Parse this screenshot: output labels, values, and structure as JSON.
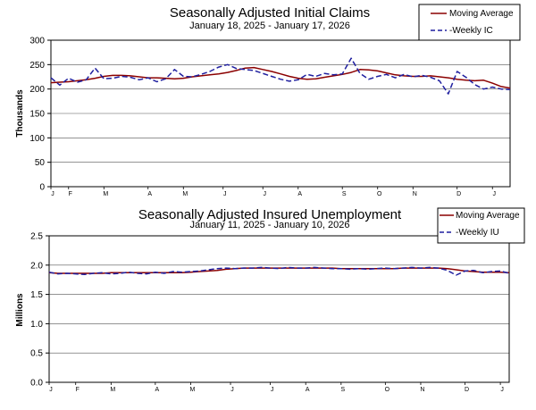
{
  "chart_data": [
    {
      "type": "line",
      "title": "Seasonally Adjusted Initial Claims",
      "subtitle": "January 18, 2025 - January 17, 2026",
      "ylabel": "Thousands",
      "xlabel": "",
      "ylim": [
        0,
        300
      ],
      "yticks": [
        "0",
        "50",
        "100",
        "150",
        "200",
        "250",
        "300"
      ],
      "month_ticks": [
        {
          "label": "J",
          "week": 0
        },
        {
          "label": "F",
          "week": 2
        },
        {
          "label": "M",
          "week": 6
        },
        {
          "label": "A",
          "week": 11
        },
        {
          "label": "M",
          "week": 15
        },
        {
          "label": "J",
          "week": 19.5
        },
        {
          "label": "J",
          "week": 24
        },
        {
          "label": "A",
          "week": 28
        },
        {
          "label": "S",
          "week": 33
        },
        {
          "label": "O",
          "week": 37
        },
        {
          "label": "N",
          "week": 41
        },
        {
          "label": "D",
          "week": 46
        },
        {
          "label": "J",
          "week": 50
        }
      ],
      "legend": [
        "Moving Average",
        "-Weekly IC"
      ],
      "legend_position": "top-right",
      "series": [
        {
          "name": "Moving Average",
          "color": "#8B0000",
          "dash": "solid",
          "values": [
            213,
            214,
            215,
            217,
            219,
            222,
            226,
            228,
            228,
            227,
            225,
            223,
            223,
            222,
            221,
            222,
            225,
            227,
            229,
            231,
            234,
            238,
            243,
            244,
            240,
            236,
            231,
            226,
            222,
            220,
            221,
            224,
            227,
            230,
            234,
            240,
            239,
            237,
            233,
            229,
            227,
            226,
            226,
            227,
            225,
            223,
            220,
            218,
            217,
            218,
            212,
            205,
            202
          ]
        },
        {
          "name": "-Weekly IC",
          "color": "#1f1f9f",
          "dash": "dashed",
          "values": [
            223,
            208,
            222,
            214,
            219,
            243,
            221,
            222,
            226,
            224,
            219,
            223,
            215,
            221,
            240,
            226,
            225,
            230,
            236,
            245,
            250,
            242,
            240,
            238,
            232,
            226,
            220,
            216,
            219,
            230,
            226,
            232,
            229,
            231,
            263,
            232,
            220,
            226,
            230,
            223,
            230,
            225,
            228,
            224,
            217,
            190,
            236,
            224,
            209,
            200,
            204,
            200,
            199
          ]
        }
      ]
    },
    {
      "type": "line",
      "title": "Seasonally Adjusted Insured Unemployment",
      "subtitle": "January 11, 2025 - January 10, 2026",
      "ylabel": "Millions",
      "xlabel": "",
      "ylim": [
        0,
        2.5
      ],
      "yticks": [
        "0.0",
        "0.5",
        "1.0",
        "1.5",
        "2.0",
        "2.5"
      ],
      "month_ticks": [
        {
          "label": "J",
          "week": 0
        },
        {
          "label": "F",
          "week": 3
        },
        {
          "label": "M",
          "week": 7
        },
        {
          "label": "A",
          "week": 12
        },
        {
          "label": "M",
          "week": 16
        },
        {
          "label": "J",
          "week": 20.5
        },
        {
          "label": "J",
          "week": 25
        },
        {
          "label": "A",
          "week": 29
        },
        {
          "label": "S",
          "week": 33
        },
        {
          "label": "O",
          "week": 38
        },
        {
          "label": "N",
          "week": 42
        },
        {
          "label": "D",
          "week": 47
        },
        {
          "label": "J",
          "week": 51
        }
      ],
      "legend": [
        "Moving Average",
        "-Weekly IU"
      ],
      "legend_position": "top-right",
      "series": [
        {
          "name": "Moving Average",
          "color": "#8B0000",
          "dash": "solid",
          "values": [
            1.87,
            1.86,
            1.86,
            1.86,
            1.86,
            1.86,
            1.86,
            1.87,
            1.87,
            1.87,
            1.87,
            1.87,
            1.87,
            1.87,
            1.87,
            1.87,
            1.88,
            1.89,
            1.9,
            1.91,
            1.93,
            1.94,
            1.95,
            1.95,
            1.95,
            1.95,
            1.95,
            1.95,
            1.95,
            1.95,
            1.95,
            1.95,
            1.95,
            1.94,
            1.94,
            1.94,
            1.94,
            1.94,
            1.94,
            1.94,
            1.95,
            1.95,
            1.95,
            1.95,
            1.95,
            1.94,
            1.92,
            1.9,
            1.89,
            1.88,
            1.88,
            1.88,
            1.87
          ]
        },
        {
          "name": "-Weekly IU",
          "color": "#1f1f9f",
          "dash": "dashed",
          "values": [
            1.88,
            1.85,
            1.86,
            1.85,
            1.84,
            1.86,
            1.87,
            1.85,
            1.86,
            1.88,
            1.86,
            1.85,
            1.88,
            1.86,
            1.89,
            1.88,
            1.89,
            1.9,
            1.92,
            1.94,
            1.95,
            1.94,
            1.95,
            1.95,
            1.96,
            1.95,
            1.94,
            1.96,
            1.95,
            1.95,
            1.96,
            1.95,
            1.94,
            1.94,
            1.93,
            1.94,
            1.93,
            1.94,
            1.95,
            1.94,
            1.95,
            1.96,
            1.95,
            1.96,
            1.95,
            1.91,
            1.83,
            1.9,
            1.91,
            1.87,
            1.89,
            1.9,
            1.86
          ]
        }
      ]
    }
  ]
}
